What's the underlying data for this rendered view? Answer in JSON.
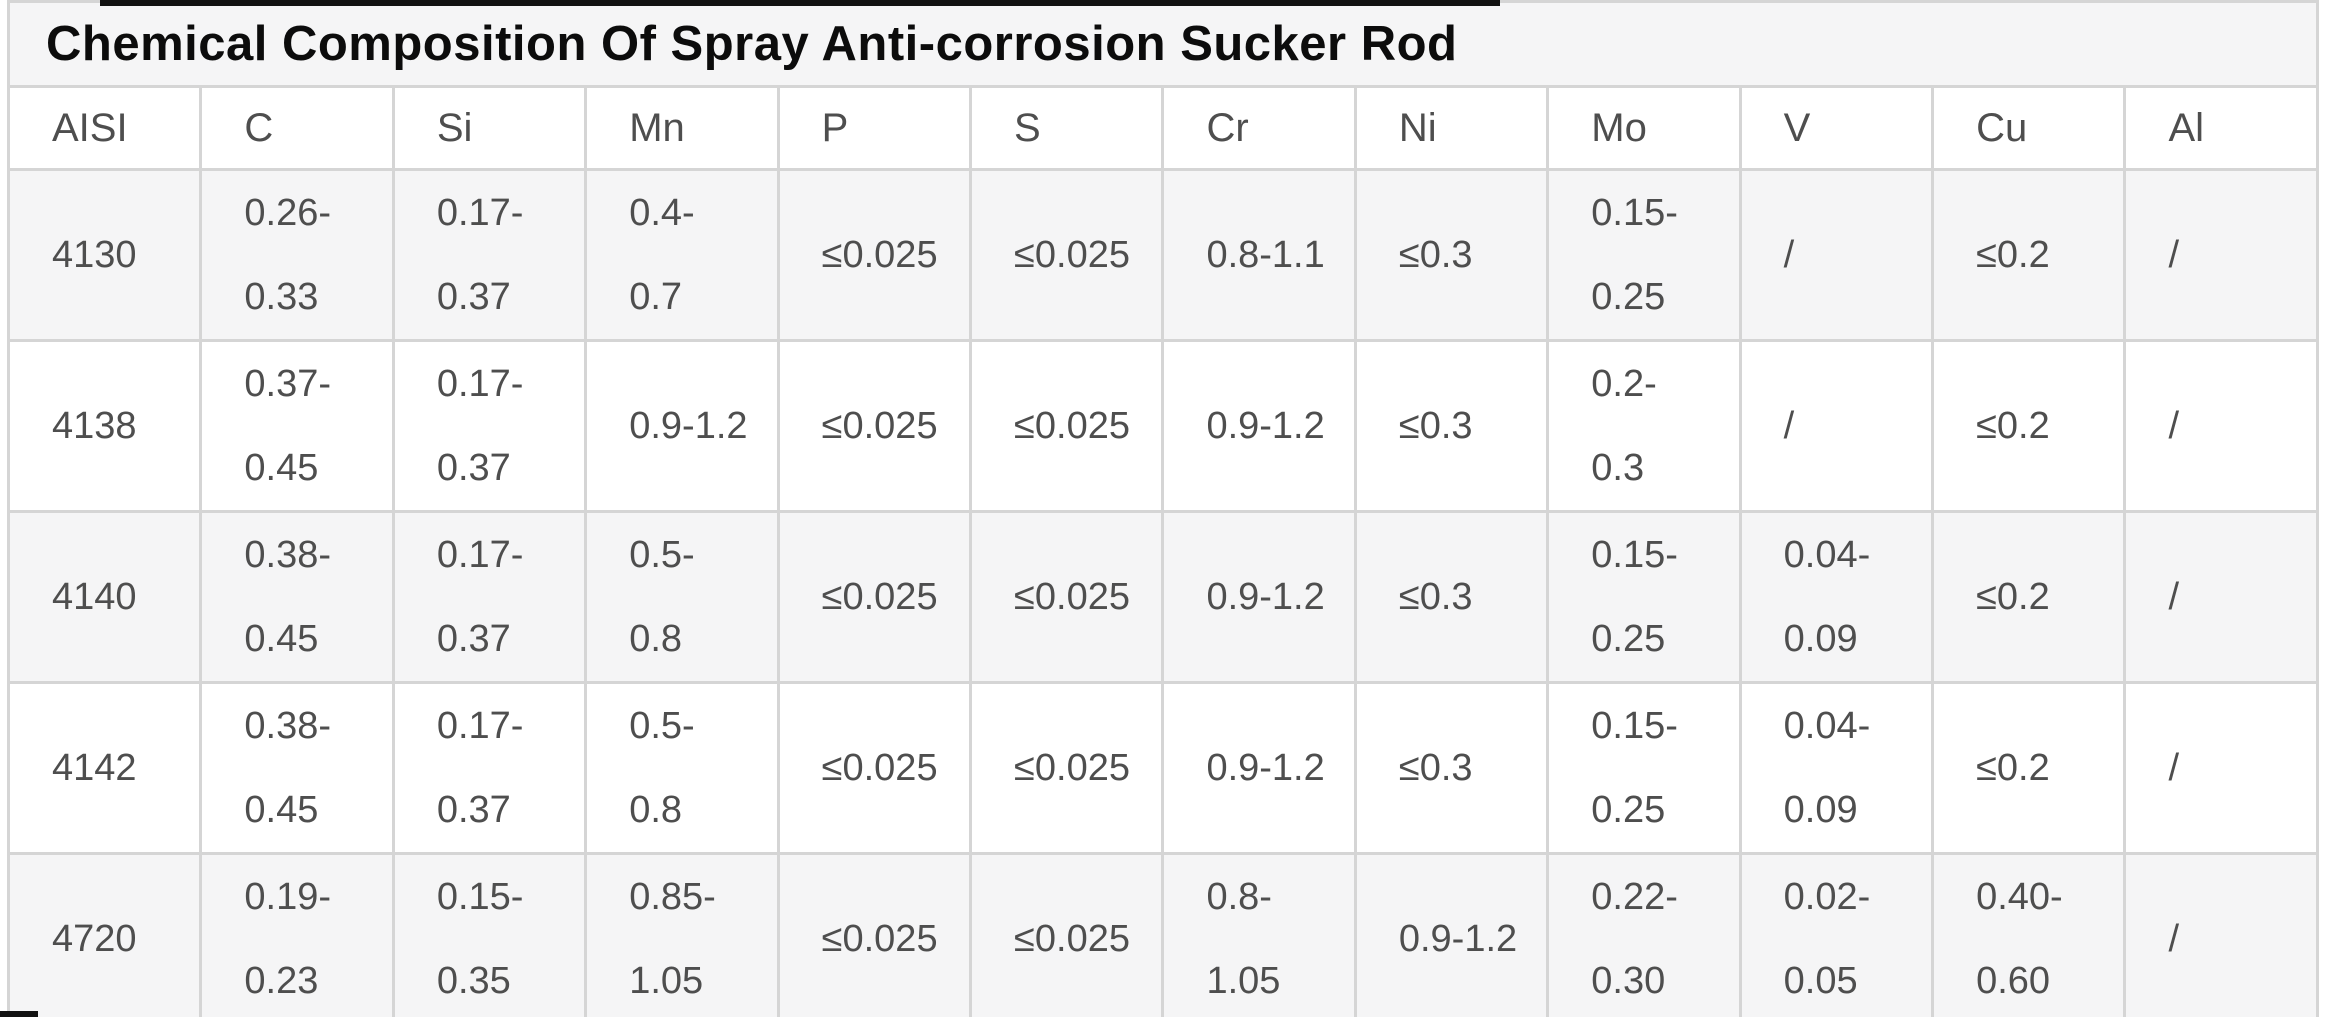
{
  "title": "Chemical Composition Of Spray Anti-corrosion Sucker Rod",
  "colors": {
    "stripe_bg": "#f5f5f6",
    "row_bg": "#ffffff",
    "border": "#d5d5d5",
    "text": "#4e4e4e",
    "title_text": "#0c0c0c",
    "artifact_bar": "#121212"
  },
  "chart_data": {
    "type": "table",
    "title": "Chemical Composition Of Spray Anti-corrosion Sucker Rod",
    "columns": [
      "AISI",
      "C",
      "Si",
      "Mn",
      "P",
      "S",
      "Cr",
      "Ni",
      "Mo",
      "V",
      "Cu",
      "Al"
    ],
    "rows": [
      [
        "4130",
        [
          "0.26-",
          "0.33"
        ],
        [
          "0.17-",
          "0.37"
        ],
        [
          "0.4-",
          "0.7"
        ],
        "≤0.025",
        "≤0.025",
        "0.8-1.1",
        "≤0.3",
        [
          "0.15-",
          "0.25"
        ],
        "/",
        "≤0.2",
        "/"
      ],
      [
        "4138",
        [
          "0.37-",
          "0.45"
        ],
        [
          "0.17-",
          "0.37"
        ],
        "0.9-1.2",
        "≤0.025",
        "≤0.025",
        "0.9-1.2",
        "≤0.3",
        [
          "0.2-",
          "0.3"
        ],
        "/",
        "≤0.2",
        "/"
      ],
      [
        "4140",
        [
          "0.38-",
          "0.45"
        ],
        [
          "0.17-",
          "0.37"
        ],
        [
          "0.5-",
          "0.8"
        ],
        "≤0.025",
        "≤0.025",
        "0.9-1.2",
        "≤0.3",
        [
          "0.15-",
          "0.25"
        ],
        [
          "0.04-",
          "0.09"
        ],
        "≤0.2",
        "/"
      ],
      [
        "4142",
        [
          "0.38-",
          "0.45"
        ],
        [
          "0.17-",
          "0.37"
        ],
        [
          "0.5-",
          "0.8"
        ],
        "≤0.025",
        "≤0.025",
        "0.9-1.2",
        "≤0.3",
        [
          "0.15-",
          "0.25"
        ],
        [
          "0.04-",
          "0.09"
        ],
        "≤0.2",
        "/"
      ],
      [
        "4720",
        [
          "0.19-",
          "0.23"
        ],
        [
          "0.15-",
          "0.35"
        ],
        [
          "0.85-",
          "1.05"
        ],
        "≤0.025",
        "≤0.025",
        [
          "0.8-",
          "1.05"
        ],
        "0.9-1.2",
        [
          "0.22-",
          "0.30"
        ],
        [
          "0.02-",
          "0.05"
        ],
        [
          "0.40-",
          "0.60"
        ],
        "/"
      ]
    ]
  }
}
